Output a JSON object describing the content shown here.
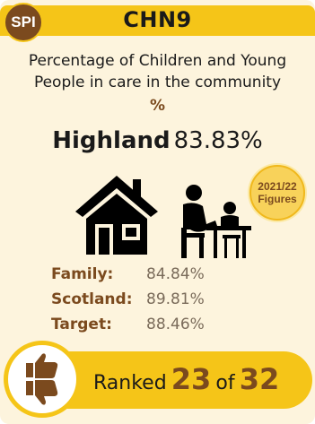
{
  "header": {
    "badge": "SPI",
    "code": "CHN9"
  },
  "indicator": {
    "description_line1": "Percentage of Children and Young",
    "description_line2": "People in care in the community",
    "unit": "%"
  },
  "headline": {
    "area": "Highland",
    "value": "83.83%"
  },
  "year_badge": {
    "line1": "2021/22",
    "line2": "Figures"
  },
  "comparisons": [
    {
      "label": "Family:",
      "value": "84.84%"
    },
    {
      "label": "Scotland:",
      "value": "89.81%"
    },
    {
      "label": "Target:",
      "value": "88.46%"
    }
  ],
  "ranking": {
    "ranked_word": "Ranked",
    "rank": "23",
    "of_word": "of",
    "total": "32"
  },
  "icons": {
    "house": "house-icon",
    "family": "parent-and-child-at-table-icon",
    "thumbs": "thumbs-up-down-icon"
  },
  "colors": {
    "accent_yellow": "#f5c518",
    "brown": "#7b4a1e",
    "background": "#fdf4dd"
  }
}
